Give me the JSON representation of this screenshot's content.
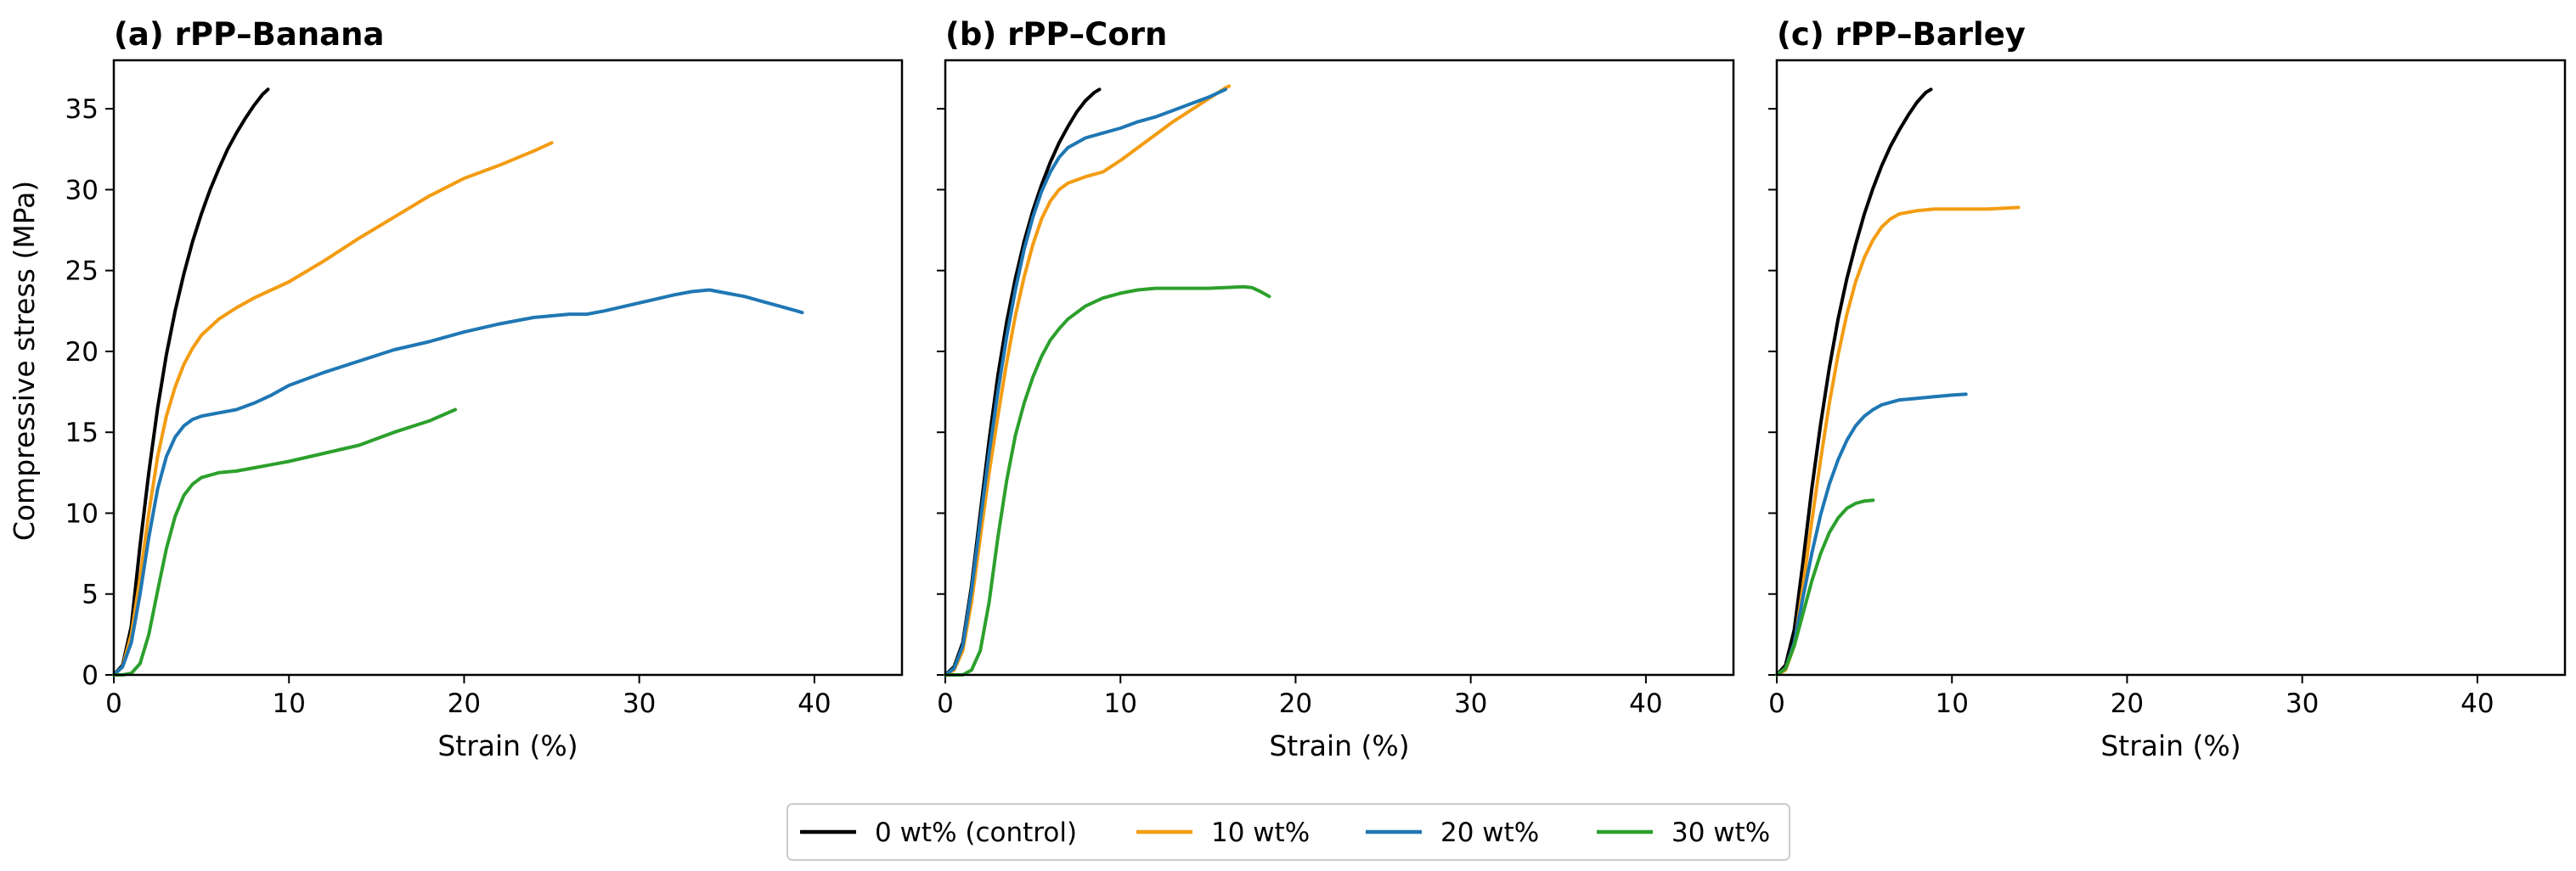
{
  "figure": {
    "ylabel": "Compressive stress (MPa)",
    "legend": {
      "placement": "bottom-center",
      "entries": [
        {
          "label": "0 wt% (control)",
          "color": "#000000"
        },
        {
          "label": "10 wt%",
          "color": "#f39c12"
        },
        {
          "label": "20 wt%",
          "color": "#1f77b4"
        },
        {
          "label": "30 wt%",
          "color": "#2ca02c"
        }
      ]
    }
  },
  "chart_data": [
    {
      "type": "line",
      "title": "(a) rPP–Banana",
      "xlabel": "Strain (%)",
      "ylabel": "Compressive stress (MPa)",
      "xlim": [
        0,
        45
      ],
      "ylim": [
        0,
        38
      ],
      "xticks": [
        0,
        10,
        20,
        30,
        40
      ],
      "yticks": [
        0,
        5,
        10,
        15,
        20,
        25,
        30,
        35
      ],
      "grid": false,
      "series": [
        {
          "name": "0 wt% (control)",
          "color": "#000000",
          "x": [
            0,
            0.5,
            1,
            1.5,
            2,
            2.5,
            3,
            3.5,
            4,
            4.5,
            5,
            5.5,
            6,
            6.5,
            7,
            7.5,
            8,
            8.5,
            8.8
          ],
          "y": [
            0,
            0.6,
            3,
            8,
            12.5,
            16.5,
            19.8,
            22.5,
            24.8,
            26.8,
            28.5,
            30,
            31.3,
            32.5,
            33.5,
            34.4,
            35.2,
            35.9,
            36.2
          ]
        },
        {
          "name": "10 wt%",
          "color": "#f39c12",
          "x": [
            0,
            0.5,
            1,
            1.5,
            2,
            2.5,
            3,
            3.5,
            4,
            4.5,
            5,
            6,
            7,
            8,
            9,
            10,
            12,
            14,
            16,
            18,
            20,
            22,
            24,
            25
          ],
          "y": [
            0,
            0.5,
            2.5,
            6,
            10,
            13.5,
            16,
            17.8,
            19.2,
            20.2,
            21,
            22,
            22.7,
            23.3,
            23.8,
            24.3,
            25.6,
            27,
            28.3,
            29.6,
            30.7,
            31.5,
            32.4,
            32.9
          ]
        },
        {
          "name": "20 wt%",
          "color": "#1f77b4",
          "x": [
            0,
            0.5,
            1,
            1.5,
            2,
            2.5,
            3,
            3.5,
            4,
            4.5,
            5,
            6,
            7,
            8,
            9,
            10,
            12,
            14,
            16,
            18,
            20,
            22,
            24,
            26,
            27,
            28,
            30,
            32,
            33,
            34,
            35,
            36,
            37,
            38,
            39,
            39.3
          ],
          "y": [
            0,
            0.5,
            2,
            5,
            8.5,
            11.5,
            13.5,
            14.7,
            15.4,
            15.8,
            16,
            16.2,
            16.4,
            16.8,
            17.3,
            17.9,
            18.7,
            19.4,
            20.1,
            20.6,
            21.2,
            21.7,
            22.1,
            22.3,
            22.3,
            22.5,
            23,
            23.5,
            23.7,
            23.8,
            23.6,
            23.4,
            23.1,
            22.8,
            22.5,
            22.4
          ]
        },
        {
          "name": "30 wt%",
          "color": "#2ca02c",
          "x": [
            0,
            0.5,
            1,
            1.5,
            2,
            2.5,
            3,
            3.5,
            4,
            4.5,
            5,
            6,
            7,
            8,
            9,
            10,
            12,
            14,
            16,
            18,
            19.5
          ],
          "y": [
            0,
            0,
            0.1,
            0.7,
            2.5,
            5.2,
            7.8,
            9.8,
            11.1,
            11.8,
            12.2,
            12.5,
            12.6,
            12.8,
            13,
            13.2,
            13.7,
            14.2,
            15,
            15.7,
            16.4
          ]
        }
      ]
    },
    {
      "type": "line",
      "title": "(b) rPP–Corn",
      "xlabel": "Strain (%)",
      "ylabel": "",
      "xlim": [
        0,
        45
      ],
      "ylim": [
        0,
        38
      ],
      "xticks": [
        0,
        10,
        20,
        30,
        40
      ],
      "yticks": [
        0,
        5,
        10,
        15,
        20,
        25,
        30,
        35
      ],
      "grid": false,
      "series": [
        {
          "name": "0 wt% (control)",
          "color": "#000000",
          "x": [
            0,
            0.5,
            1,
            1.5,
            2,
            2.5,
            3,
            3.5,
            4,
            4.5,
            5,
            5.5,
            6,
            6.5,
            7,
            7.5,
            8,
            8.5,
            8.8
          ],
          "y": [
            0,
            0.5,
            2,
            5.5,
            10,
            14.5,
            18.5,
            21.8,
            24.5,
            26.8,
            28.7,
            30.3,
            31.7,
            32.9,
            33.9,
            34.8,
            35.5,
            36,
            36.2
          ]
        },
        {
          "name": "10 wt%",
          "color": "#f39c12",
          "x": [
            0,
            0.5,
            1,
            1.5,
            2,
            2.5,
            3,
            3.5,
            4,
            4.5,
            5,
            5.5,
            6,
            6.5,
            7,
            8,
            9,
            10,
            11,
            12,
            13,
            14,
            15,
            16,
            16.2
          ],
          "y": [
            0,
            0.3,
            1.5,
            4.5,
            8.5,
            12.5,
            16,
            19.3,
            22.2,
            24.6,
            26.6,
            28.2,
            29.3,
            30,
            30.4,
            30.8,
            31.1,
            31.8,
            32.6,
            33.4,
            34.2,
            34.9,
            35.6,
            36.3,
            36.4
          ]
        },
        {
          "name": "20 wt%",
          "color": "#1f77b4",
          "x": [
            0,
            0.5,
            1,
            1.5,
            2,
            2.5,
            3,
            3.5,
            4,
            4.5,
            5,
            5.5,
            6,
            6.5,
            7,
            8,
            9,
            10,
            11,
            12,
            13,
            14,
            15,
            16
          ],
          "y": [
            0,
            0.4,
            1.8,
            5.2,
            9.5,
            13.7,
            17.5,
            20.9,
            23.8,
            26.3,
            28.3,
            29.9,
            31.1,
            32,
            32.6,
            33.2,
            33.5,
            33.8,
            34.2,
            34.5,
            34.9,
            35.3,
            35.7,
            36.2
          ]
        },
        {
          "name": "30 wt%",
          "color": "#2ca02c",
          "x": [
            0,
            1,
            1.5,
            2,
            2.5,
            3,
            3.5,
            4,
            4.5,
            5,
            5.5,
            6,
            6.5,
            7,
            8,
            9,
            10,
            11,
            12,
            13,
            14,
            15,
            16,
            17,
            17.5,
            18,
            18.5
          ],
          "y": [
            0,
            0,
            0.3,
            1.5,
            4.5,
            8.5,
            12,
            14.8,
            16.8,
            18.4,
            19.7,
            20.7,
            21.4,
            22,
            22.8,
            23.3,
            23.6,
            23.8,
            23.9,
            23.9,
            23.9,
            23.9,
            23.95,
            24,
            23.95,
            23.7,
            23.4
          ]
        }
      ]
    },
    {
      "type": "line",
      "title": "(c) rPP–Barley",
      "xlabel": "Strain (%)",
      "ylabel": "",
      "xlim": [
        0,
        45
      ],
      "ylim": [
        0,
        38
      ],
      "xticks": [
        0,
        10,
        20,
        30,
        40
      ],
      "yticks": [
        0,
        5,
        10,
        15,
        20,
        25,
        30,
        35
      ],
      "grid": false,
      "series": [
        {
          "name": "0 wt% (control)",
          "color": "#000000",
          "x": [
            0,
            0.5,
            1,
            1.5,
            2,
            2.5,
            3,
            3.5,
            4,
            4.5,
            5,
            5.5,
            6,
            6.5,
            7,
            7.5,
            8,
            8.5,
            8.8
          ],
          "y": [
            0,
            0.6,
            2.8,
            7,
            11.5,
            15.5,
            19,
            22,
            24.5,
            26.6,
            28.5,
            30.1,
            31.5,
            32.7,
            33.7,
            34.6,
            35.4,
            36,
            36.2
          ]
        },
        {
          "name": "10 wt%",
          "color": "#f39c12",
          "x": [
            0,
            0.5,
            1,
            1.5,
            2,
            2.5,
            3,
            3.5,
            4,
            4.5,
            5,
            5.5,
            6,
            6.5,
            7,
            8,
            9,
            10,
            11,
            12,
            13,
            13.8
          ],
          "y": [
            0,
            0.3,
            1.8,
            5.5,
            9.5,
            13.3,
            16.8,
            19.8,
            22.3,
            24.3,
            25.8,
            26.9,
            27.7,
            28.2,
            28.5,
            28.7,
            28.8,
            28.8,
            28.8,
            28.8,
            28.85,
            28.9
          ]
        },
        {
          "name": "20 wt%",
          "color": "#1f77b4",
          "x": [
            0,
            0.5,
            1,
            1.5,
            2,
            2.5,
            3,
            3.5,
            4,
            4.5,
            5,
            5.5,
            6,
            7,
            8,
            9,
            10,
            10.8
          ],
          "y": [
            0,
            0.4,
            2,
            4.8,
            7.5,
            9.9,
            11.8,
            13.3,
            14.5,
            15.4,
            16,
            16.4,
            16.7,
            17,
            17.1,
            17.2,
            17.3,
            17.35
          ]
        },
        {
          "name": "30 wt%",
          "color": "#2ca02c",
          "x": [
            0,
            0.5,
            1,
            1.5,
            2,
            2.5,
            3,
            3.5,
            4,
            4.5,
            5,
            5.5
          ],
          "y": [
            0,
            0.4,
            1.8,
            3.8,
            5.8,
            7.5,
            8.8,
            9.7,
            10.3,
            10.6,
            10.75,
            10.8
          ]
        }
      ]
    }
  ]
}
